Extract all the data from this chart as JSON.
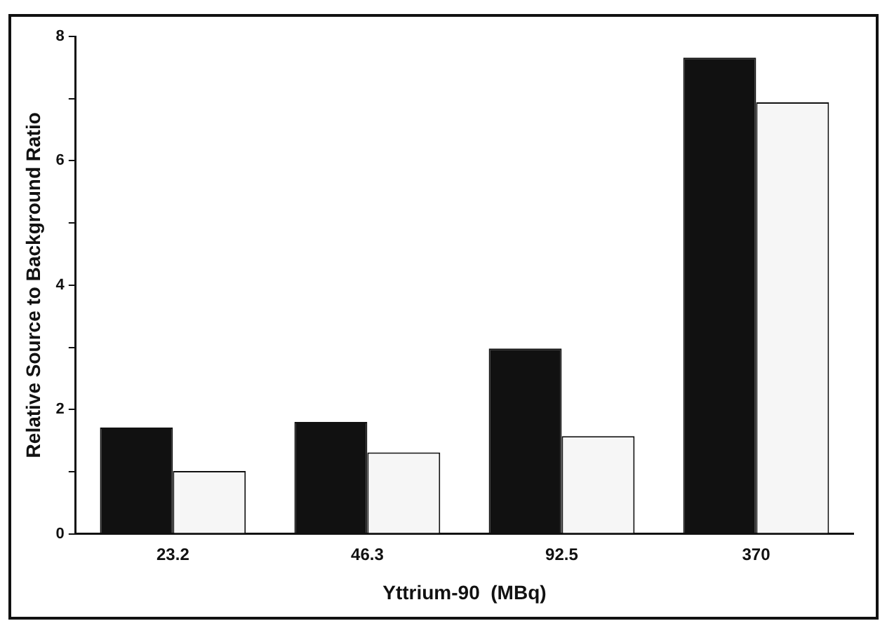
{
  "chart_data": {
    "type": "bar",
    "xlabel": "Yttrium-90  (MBq)",
    "ylabel": "Relative Source to Background Ratio",
    "categories": [
      "23.2",
      "46.3",
      "92.5",
      "370"
    ],
    "series": [
      {
        "color": "#111111",
        "values": [
          1.71,
          1.8,
          2.98,
          7.66
        ]
      },
      {
        "color": "#f6f6f6",
        "values": [
          1.01,
          1.31,
          1.57,
          6.94
        ]
      }
    ],
    "ylim": [
      0,
      8
    ],
    "yticks": [
      0,
      {
        "value": 1,
        "label": null
      },
      2,
      {
        "value": 3,
        "label": null
      },
      4,
      {
        "value": 5,
        "label": null
      },
      6,
      {
        "value": 7,
        "label": null
      },
      8
    ],
    "grid": false,
    "legend": false
  }
}
